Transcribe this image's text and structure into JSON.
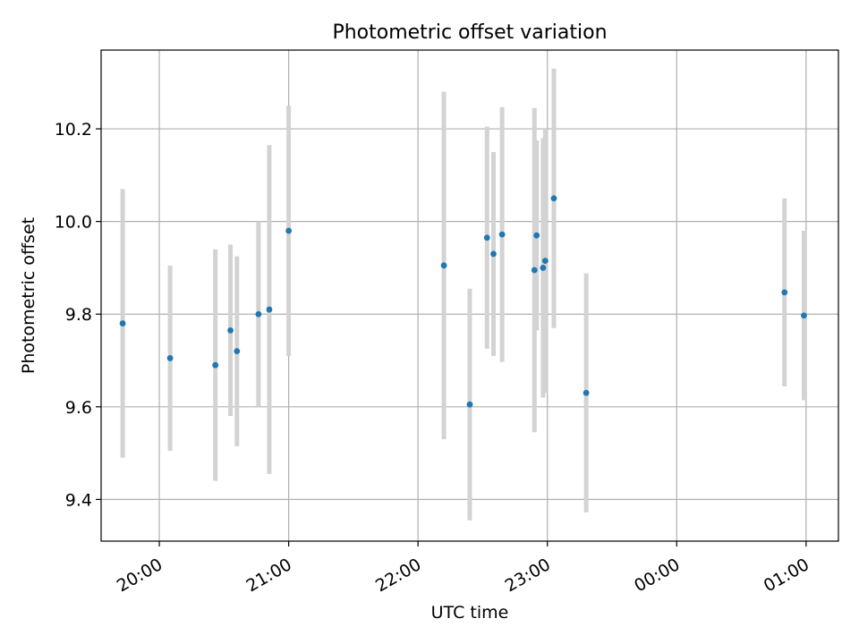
{
  "chart_data": {
    "type": "scatter",
    "title": "Photometric offset variation",
    "xlabel": "UTC time",
    "ylabel": "Photometric offset",
    "x_is_time": true,
    "xlim": [
      "19:33",
      "01:15"
    ],
    "ylim": [
      9.31,
      10.37
    ],
    "x_ticks": [
      "20:00",
      "21:00",
      "22:00",
      "23:00",
      "00:00",
      "01:00"
    ],
    "y_ticks": [
      9.4,
      9.6,
      9.8,
      10.0,
      10.2
    ],
    "y_tick_labels": [
      "9.4",
      "9.6",
      "9.8",
      "10.0",
      "10.2"
    ],
    "grid": true,
    "colors": {
      "point": "#1f77b4",
      "errorbar": "#d3d3d3",
      "grid": "#b0b0b0",
      "axes": "#000000"
    },
    "points": [
      {
        "x": "19:43",
        "y": 9.78,
        "err": 0.29
      },
      {
        "x": "20:05",
        "y": 9.705,
        "err": 0.2
      },
      {
        "x": "20:26",
        "y": 9.69,
        "err": 0.25
      },
      {
        "x": "20:33",
        "y": 9.765,
        "err": 0.185
      },
      {
        "x": "20:36",
        "y": 9.72,
        "err": 0.205
      },
      {
        "x": "20:46",
        "y": 9.8,
        "err": 0.2
      },
      {
        "x": "20:51",
        "y": 9.81,
        "err": 0.355
      },
      {
        "x": "21:00",
        "y": 9.98,
        "err": 0.27
      },
      {
        "x": "22:12",
        "y": 9.905,
        "err": 0.375
      },
      {
        "x": "22:24",
        "y": 9.605,
        "err": 0.25
      },
      {
        "x": "22:32",
        "y": 9.965,
        "err": 0.24
      },
      {
        "x": "22:35",
        "y": 9.93,
        "err": 0.22
      },
      {
        "x": "22:39",
        "y": 9.972,
        "err": 0.275
      },
      {
        "x": "22:54",
        "y": 9.895,
        "err": 0.35
      },
      {
        "x": "22:55",
        "y": 9.97,
        "err": 0.205
      },
      {
        "x": "22:58",
        "y": 9.9,
        "err": 0.28
      },
      {
        "x": "22:59",
        "y": 9.915,
        "err": 0.285
      },
      {
        "x": "23:03",
        "y": 10.05,
        "err": 0.28
      },
      {
        "x": "23:18",
        "y": 9.63,
        "err": 0.258
      },
      {
        "x": "00:50",
        "y": 9.847,
        "err": 0.203
      },
      {
        "x": "00:59",
        "y": 9.797,
        "err": 0.183
      }
    ]
  }
}
